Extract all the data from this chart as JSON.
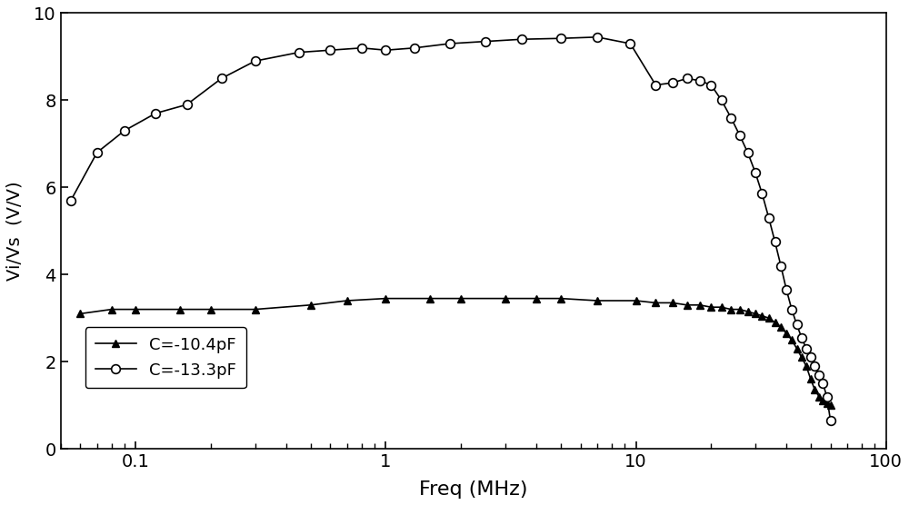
{
  "title": "",
  "xlabel": "Freq (MHz)",
  "ylabel": "Vi/Vs  (V/V)",
  "xlim_log": [
    0.05,
    100
  ],
  "ylim": [
    0,
    10
  ],
  "yticks": [
    0,
    2,
    4,
    6,
    8,
    10
  ],
  "background_color": "#ffffff",
  "curve1": {
    "label": "C=-10.4pF",
    "color": "#000000",
    "marker": "^",
    "markersize": 6,
    "markerfacecolor": "#000000",
    "freq": [
      0.06,
      0.08,
      0.1,
      0.15,
      0.2,
      0.3,
      0.5,
      0.7,
      1.0,
      1.5,
      2.0,
      3.0,
      4.0,
      5.0,
      7.0,
      10.0,
      12.0,
      14.0,
      16.0,
      18.0,
      20.0,
      22.0,
      24.0,
      26.0,
      28.0,
      30.0,
      32.0,
      34.0,
      36.0,
      38.0,
      40.0,
      42.0,
      44.0,
      46.0,
      48.0,
      50.0,
      52.0,
      54.0,
      56.0,
      58.0,
      60.0
    ],
    "values": [
      3.1,
      3.2,
      3.2,
      3.2,
      3.2,
      3.2,
      3.3,
      3.4,
      3.45,
      3.45,
      3.45,
      3.45,
      3.45,
      3.45,
      3.4,
      3.4,
      3.35,
      3.35,
      3.3,
      3.3,
      3.25,
      3.25,
      3.2,
      3.2,
      3.15,
      3.1,
      3.05,
      3.0,
      2.9,
      2.8,
      2.65,
      2.5,
      2.3,
      2.1,
      1.9,
      1.6,
      1.35,
      1.2,
      1.1,
      1.05,
      1.0
    ]
  },
  "curve2": {
    "label": "C=-13.3pF",
    "color": "#000000",
    "marker": "o",
    "markersize": 7,
    "markerfacecolor": "#ffffff",
    "freq": [
      0.055,
      0.07,
      0.09,
      0.12,
      0.16,
      0.22,
      0.3,
      0.45,
      0.6,
      0.8,
      1.0,
      1.3,
      1.8,
      2.5,
      3.5,
      5.0,
      7.0,
      9.5,
      12.0,
      14.0,
      16.0,
      18.0,
      20.0,
      22.0,
      24.0,
      26.0,
      28.0,
      30.0,
      32.0,
      34.0,
      36.0,
      38.0,
      40.0,
      42.0,
      44.0,
      46.0,
      48.0,
      50.0,
      52.0,
      54.0,
      56.0,
      58.0,
      60.0
    ],
    "values": [
      5.7,
      6.8,
      7.3,
      7.7,
      7.9,
      8.5,
      8.9,
      9.1,
      9.15,
      9.2,
      9.15,
      9.2,
      9.3,
      9.35,
      9.4,
      9.42,
      9.45,
      9.3,
      8.35,
      8.4,
      8.5,
      8.45,
      8.35,
      8.0,
      7.6,
      7.2,
      6.8,
      6.35,
      5.85,
      5.3,
      4.75,
      4.2,
      3.65,
      3.2,
      2.85,
      2.55,
      2.3,
      2.1,
      1.9,
      1.7,
      1.5,
      1.2,
      0.65
    ]
  }
}
